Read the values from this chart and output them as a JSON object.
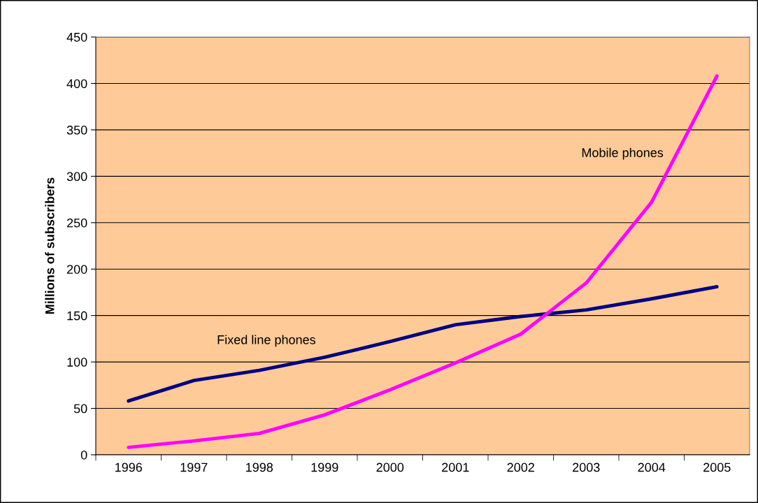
{
  "chart_data": {
    "type": "line",
    "ylabel": "Millions of subscribers",
    "categories": [
      "1996",
      "1997",
      "1998",
      "1999",
      "2000",
      "2001",
      "2002",
      "2003",
      "2004",
      "2005"
    ],
    "series": [
      {
        "name": "Fixed line phones",
        "color": "#000080",
        "values": [
          58,
          80,
          91,
          105,
          122,
          140,
          149,
          156,
          168,
          181
        ]
      },
      {
        "name": "Mobile phones",
        "color": "#ff00ff",
        "values": [
          8,
          15,
          23,
          43,
          70,
          99,
          130,
          185,
          272,
          408
        ]
      }
    ],
    "ylim": [
      0,
      450
    ],
    "yticks": [
      0,
      50,
      100,
      150,
      200,
      250,
      300,
      350,
      400,
      450
    ],
    "grid": "y",
    "legend": false,
    "marker": "none",
    "line_style": "solid"
  }
}
